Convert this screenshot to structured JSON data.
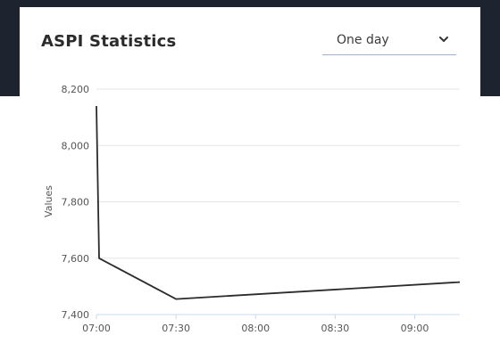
{
  "header": {
    "title": "ASPI Statistics",
    "period_select": {
      "selected": "One day"
    }
  },
  "icons": {
    "dropdown": "chevron-down-icon"
  },
  "colors": {
    "line": "#2b2b2b",
    "grid": "#e6e6e6",
    "axis": "#c8d8ee",
    "page_bg_dark": "#1e2330"
  },
  "chart_data": {
    "type": "line",
    "title": "",
    "xlabel": "",
    "ylabel": "Values",
    "ylim": [
      7400,
      8200
    ],
    "y_ticks": [
      7400,
      7600,
      7800,
      8000,
      8200
    ],
    "y_tick_labels": [
      "7,400",
      "7,600",
      "7,800",
      "8,000",
      "8,200"
    ],
    "x_tick_labels": [
      "07:00",
      "07:30",
      "08:00",
      "08:30",
      "09:00"
    ],
    "xlim": [
      "07:00",
      "09:17"
    ],
    "grid": true,
    "series": [
      {
        "x": [
          "07:00",
          "07:01",
          "07:30",
          "09:17"
        ],
        "values": [
          8140,
          7600,
          7455,
          7515
        ]
      }
    ]
  }
}
